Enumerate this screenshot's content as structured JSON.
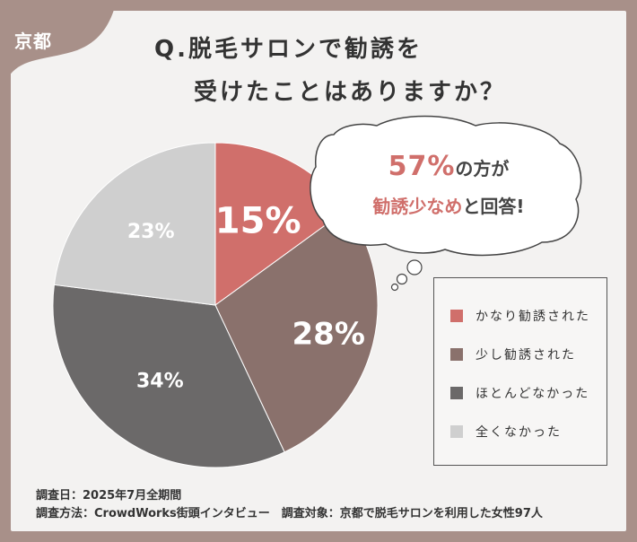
{
  "badge": {
    "region": "京都"
  },
  "title": {
    "line1": "Q.脱毛サロンで勧誘を",
    "line2": "受けたことはありますか？"
  },
  "callout": {
    "percent": "57%",
    "suffix": "の方が",
    "highlight": "勧誘少なめ",
    "ending": "と回答!"
  },
  "chart_data": {
    "type": "pie",
    "title": "Q.脱毛サロンで勧誘を受けたことはありますか？",
    "start": "top",
    "direction": "clockwise",
    "slices": [
      {
        "label": "かなり勧誘された",
        "value": 15,
        "display": "15%",
        "color": "#d06f6b"
      },
      {
        "label": "少し勧誘された",
        "value": 28,
        "display": "28%",
        "color": "#8a716c"
      },
      {
        "label": "ほとんどなかった",
        "value": 34,
        "display": "34%",
        "color": "#6b6969"
      },
      {
        "label": "全くなかった",
        "value": 23,
        "display": "23%",
        "color": "#cfcfcf"
      }
    ],
    "legend_position": "right"
  },
  "footnotes": {
    "line1": "調査日：2025年7月全期間",
    "line2": "調査方法：CrowdWorks街頭インタビュー　調査対象：京都で脱毛サロンを利用した女性97人"
  }
}
